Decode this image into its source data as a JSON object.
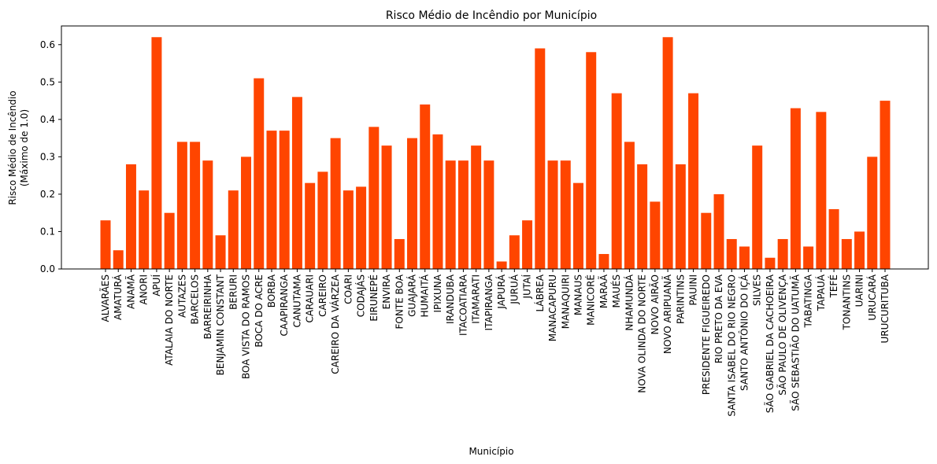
{
  "chart_data": {
    "type": "bar",
    "title": "Risco Médio de Incêndio por Município",
    "xlabel": "Município",
    "ylabel": "Risco Médio de Incêndio",
    "ylabel_line2": "(Máximo de 1.0)",
    "ylim": [
      0,
      0.65
    ],
    "yticks": [
      0.0,
      0.1,
      0.2,
      0.3,
      0.4,
      0.5,
      0.6
    ],
    "ytick_labels": [
      "0.0",
      "0.1",
      "0.2",
      "0.3",
      "0.4",
      "0.5",
      "0.6"
    ],
    "bar_color": "#ff4500",
    "grid": false,
    "categories": [
      "ALVARÃES",
      "AMATURÁ",
      "ANAMÃ",
      "ANORI",
      "APUÍ",
      "ATALAIA DO NORTE",
      "AUTAZES",
      "BARCELOS",
      "BARREIRINHA",
      "BENJAMIN CONSTANT",
      "BERURI",
      "BOA VISTA DO RAMOS",
      "BOCA DO ACRE",
      "BORBA",
      "CAAPIRANGA",
      "CANUTAMA",
      "CARAUARI",
      "CAREIRO",
      "CAREIRO DA VÁRZEA",
      "COARI",
      "CODAJÁS",
      "EIRUNEPÉ",
      "ENVIRA",
      "FONTE BOA",
      "GUAJARÁ",
      "HUMAITÁ",
      "IPIXUNA",
      "IRANDUBA",
      "ITACOATIARA",
      "ITAMARATI",
      "ITAPIRANGA",
      "JAPURÁ",
      "JURUÁ",
      "JUTAÍ",
      "LÁBREA",
      "MANACAPURU",
      "MANAQUIRI",
      "MANAUS",
      "MANICORÉ",
      "MARAÃ",
      "MAUÉS",
      "NHAMUNDÁ",
      "NOVA OLINDA DO NORTE",
      "NOVO AIRÃO",
      "NOVO ARIPUANÃ",
      "PARINTINS",
      "PAUINI",
      "PRESIDENTE FIGUEIREDO",
      "RIO PRETO DA EVA",
      "SANTA ISABEL DO RIO NEGRO",
      "SANTO ANTÔNIO DO IÇÁ",
      "SILVES",
      "SÃO GABRIEL DA CACHOEIRA",
      "SÃO PAULO DE OLIVENÇA",
      "SÃO SEBASTIÃO DO UATUMÃ",
      "TABATINGA",
      "TAPAUÁ",
      "TEFÉ",
      "TONANTINS",
      "UARINI",
      "URUCARÁ",
      "URUCURITUBA"
    ],
    "values": [
      0.13,
      0.05,
      0.28,
      0.21,
      0.62,
      0.15,
      0.34,
      0.34,
      0.29,
      0.09,
      0.21,
      0.3,
      0.51,
      0.37,
      0.37,
      0.46,
      0.23,
      0.26,
      0.35,
      0.21,
      0.22,
      0.38,
      0.33,
      0.08,
      0.35,
      0.44,
      0.36,
      0.29,
      0.29,
      0.33,
      0.29,
      0.02,
      0.09,
      0.13,
      0.59,
      0.29,
      0.29,
      0.23,
      0.58,
      0.04,
      0.47,
      0.34,
      0.28,
      0.18,
      0.62,
      0.28,
      0.47,
      0.15,
      0.2,
      0.08,
      0.06,
      0.33,
      0.03,
      0.08,
      0.43,
      0.06,
      0.42,
      0.16,
      0.08,
      0.1,
      0.3,
      0.45
    ]
  }
}
